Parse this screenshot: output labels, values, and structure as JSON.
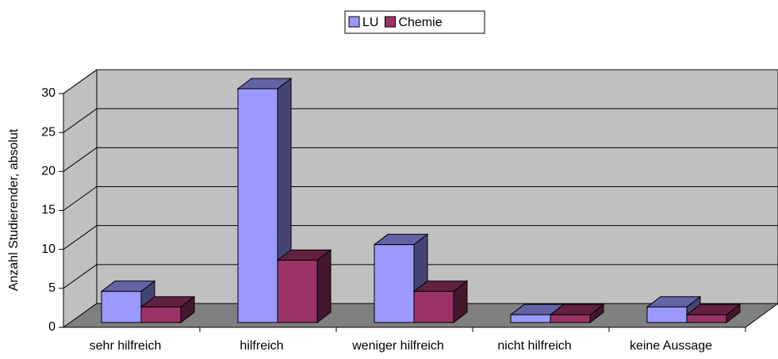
{
  "chart_data": {
    "type": "bar",
    "categories": [
      "sehr hilfreich",
      "hilfreich",
      "weniger hilfreich",
      "nicht hilfreich",
      "keine Aussage"
    ],
    "series": [
      {
        "name": "LU",
        "color": "#9999ff",
        "values": [
          4,
          30,
          10,
          1,
          2
        ]
      },
      {
        "name": "Chemie",
        "color": "#993366",
        "values": [
          2,
          8,
          4,
          1,
          1
        ]
      }
    ],
    "y_label": "Anzahl Studierender, absolut",
    "ylim": [
      0,
      30
    ],
    "yticks": [
      0,
      5,
      10,
      15,
      20,
      25,
      30
    ],
    "grid": true,
    "legend": "top"
  }
}
